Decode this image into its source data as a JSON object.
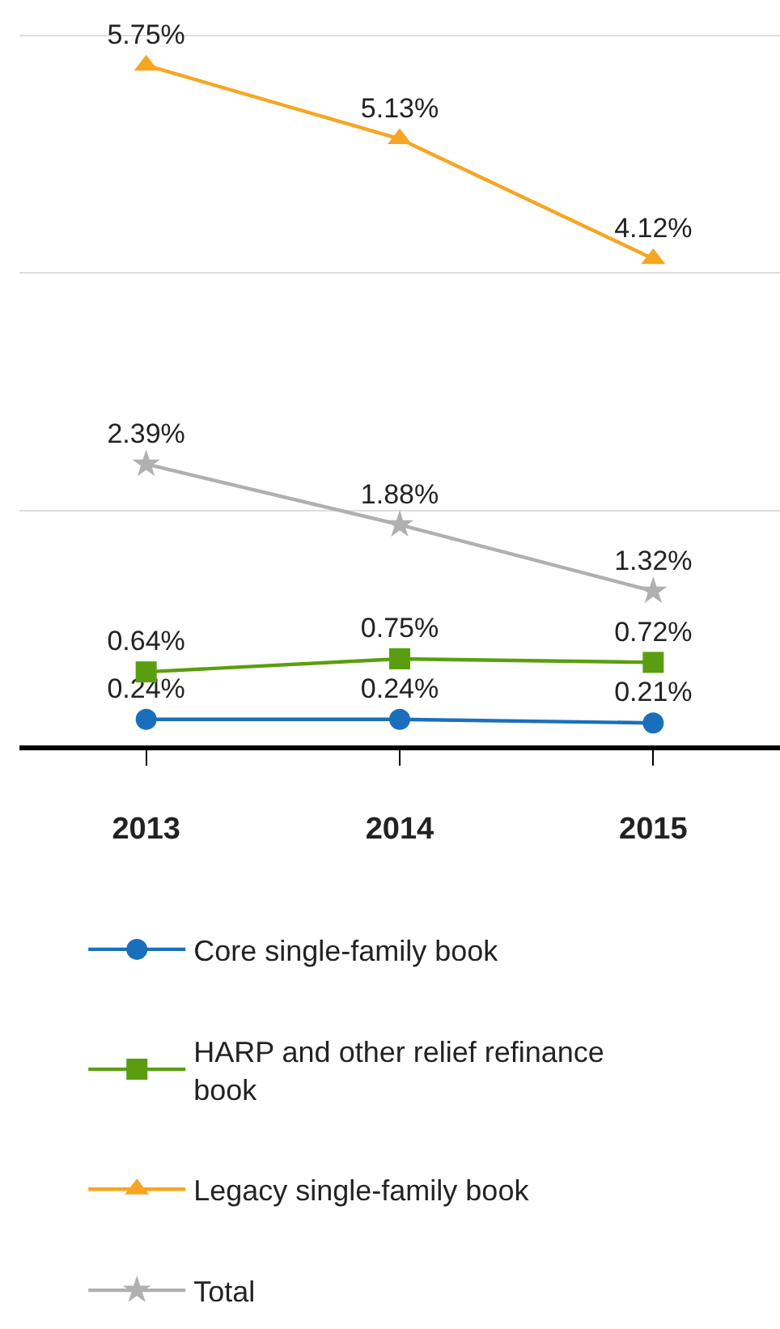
{
  "chart_data": {
    "type": "line",
    "categories": [
      "2013",
      "2014",
      "2015"
    ],
    "series": [
      {
        "name": "Core single-family book",
        "color": "#1a6fbd",
        "marker": "circle",
        "values": [
          0.24,
          0.24,
          0.21
        ],
        "value_labels": [
          "0.24%",
          "0.24%",
          "0.21%"
        ]
      },
      {
        "name": "HARP and other relief refinance book",
        "color": "#5a9e0f",
        "marker": "square",
        "values": [
          0.64,
          0.75,
          0.72
        ],
        "value_labels": [
          "0.64%",
          "0.75%",
          "0.72%"
        ]
      },
      {
        "name": "Legacy single-family book",
        "color": "#f5a623",
        "marker": "triangle",
        "values": [
          5.75,
          5.13,
          4.12
        ],
        "value_labels": [
          "5.75%",
          "5.13%",
          "4.12%"
        ]
      },
      {
        "name": "Total",
        "color": "#b0b0b0",
        "marker": "star",
        "values": [
          2.39,
          1.88,
          1.32
        ],
        "value_labels": [
          "2.39%",
          "1.88%",
          "1.32%"
        ]
      }
    ],
    "ylim": [
      0,
      6.3
    ],
    "yticks": [
      {
        "value": 0,
        "label": null
      },
      {
        "value": 2,
        "label": null
      },
      {
        "value": 4,
        "label": null
      },
      {
        "value": 6,
        "label": null
      }
    ],
    "grid": "y",
    "tick_labels": "x",
    "legend": "bottom",
    "line_style": "solid"
  }
}
